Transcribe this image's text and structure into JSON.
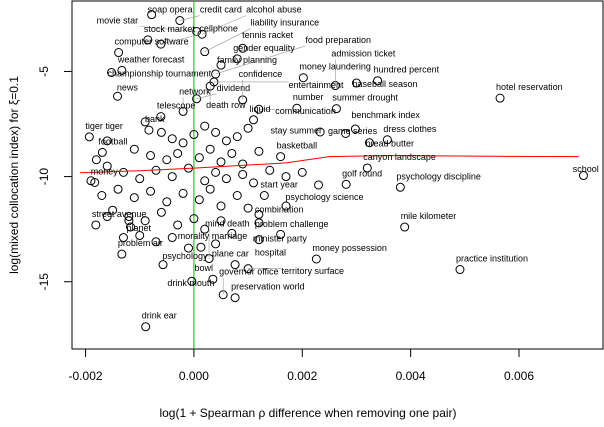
{
  "chart_data": {
    "type": "scatter",
    "title": "",
    "xlabel": "log(1 + Spearman ρ difference when removing one pair)",
    "ylabel": "log(mixed collocation index) for ξ=0.1",
    "xlim": [
      -0.00225,
      0.00755
    ],
    "ylim": [
      -18.2,
      -1.65
    ],
    "xticks": [
      -0.002,
      0.0,
      0.002,
      0.004,
      0.006
    ],
    "xtick_labels": [
      "-0.002",
      "0.000",
      "0.002",
      "0.004",
      "0.006"
    ],
    "yticks": [
      -5,
      -10,
      -15
    ],
    "ytick_labels": [
      "-5",
      "-10",
      "-15"
    ],
    "grid": false,
    "colors": {
      "points": "#000000",
      "smooth": "#ff0000",
      "zero_line": "#00c000"
    },
    "reference_line": {
      "x": 0
    },
    "smooth_line": [
      [
        -0.0021,
        -9.82
      ],
      [
        -0.001,
        -9.72
      ],
      [
        0,
        -9.6
      ],
      [
        0.0017,
        -9.35
      ],
      [
        0.0025,
        -9.05
      ],
      [
        0.0035,
        -9.0
      ],
      [
        0.0052,
        -9.03
      ],
      [
        0.0071,
        -9.05
      ]
    ],
    "labeled_points": [
      {
        "label": "soap opera",
        "x": -0.00078,
        "y": -2.3
      },
      {
        "label": "credit card",
        "x": -0.00026,
        "y": -2.58
      },
      {
        "label": "alcohol abuse",
        "x": 0.00015,
        "y": -3.23
      },
      {
        "label": "movie star",
        "x": 5e-05,
        "y": -3.1
      },
      {
        "label": "stock market",
        "x": -0.00085,
        "y": -3.5
      },
      {
        "label": "cellphone",
        "x": -0.00061,
        "y": -3.7
      },
      {
        "label": "computer software",
        "x": -0.00139,
        "y": -4.1
      },
      {
        "label": "liability insurance",
        "x": 0.0002,
        "y": -4.06
      },
      {
        "label": "tennis racket",
        "x": 0.0009,
        "y": -3.9
      },
      {
        "label": "gender equality",
        "x": 0.0008,
        "y": -4.4
      },
      {
        "label": "family planning",
        "x": 0.0005,
        "y": -4.7
      },
      {
        "label": "weather forecast",
        "x": -0.00133,
        "y": -4.95
      },
      {
        "label": "championship tournament",
        "x": -0.00152,
        "y": -5.05
      },
      {
        "label": "food preparation",
        "x": 0.0004,
        "y": -5.12
      },
      {
        "label": "entertainment",
        "x": 0.00037,
        "y": -5.5
      },
      {
        "label": "death row",
        "x": 0.0003,
        "y": -5.7
      },
      {
        "label": "money laundering",
        "x": 0.00202,
        "y": -5.3
      },
      {
        "label": "hundred percent",
        "x": 0.00339,
        "y": -5.44
      },
      {
        "label": "baseball season",
        "x": 0.003,
        "y": -5.55
      },
      {
        "label": "admission ticket",
        "x": 0.00261,
        "y": -5.67
      },
      {
        "label": "hotel reservation",
        "x": 0.00565,
        "y": -6.27
      },
      {
        "label": "news",
        "x": -0.00141,
        "y": -6.18
      },
      {
        "label": "dividend",
        "x": 5e-05,
        "y": -6.3
      },
      {
        "label": "confidence",
        "x": 0.0009,
        "y": -6.35
      },
      {
        "label": "network",
        "x": -0.0002,
        "y": -6.9
      },
      {
        "label": "communication",
        "x": 0.0012,
        "y": -6.8
      },
      {
        "label": "number",
        "x": 0.0019,
        "y": -6.75
      },
      {
        "label": "summer drought",
        "x": 0.00263,
        "y": -6.77
      },
      {
        "label": "telescope",
        "x": -0.00061,
        "y": -7.15
      },
      {
        "label": "liquid",
        "x": 0.0011,
        "y": -7.3
      },
      {
        "label": "bank",
        "x": -0.00083,
        "y": -7.79
      },
      {
        "label": "tiger tiger",
        "x": -0.00193,
        "y": -8.11
      },
      {
        "label": "benchmark index",
        "x": 0.00298,
        "y": -7.74
      },
      {
        "label": "game series",
        "x": 0.0028,
        "y": -7.95
      },
      {
        "label": "stay summer",
        "x": 0.00233,
        "y": -7.88
      },
      {
        "label": "dress clothes",
        "x": 0.00357,
        "y": -8.25
      },
      {
        "label": "bread butter",
        "x": 0.00324,
        "y": -8.39
      },
      {
        "label": "football",
        "x": -0.00169,
        "y": -8.85
      },
      {
        "label": "basketball",
        "x": 0.0016,
        "y": -9.05
      },
      {
        "label": "canyon landscape",
        "x": 0.0032,
        "y": -9.59
      },
      {
        "label": "money",
        "x": -0.00183,
        "y": -10.28
      },
      {
        "label": "school",
        "x": 0.00719,
        "y": -9.95
      },
      {
        "label": "golf round",
        "x": 0.00281,
        "y": -10.37
      },
      {
        "label": "psychology discipline",
        "x": 0.00381,
        "y": -10.51
      },
      {
        "label": "start year",
        "x": 0.0013,
        "y": -10.9
      },
      {
        "label": "psychology science",
        "x": 0.0017,
        "y": -11.4
      },
      {
        "label": "combination",
        "x": 0.0012,
        "y": -11.8
      },
      {
        "label": "problem challenge",
        "x": 0.0012,
        "y": -12.2
      },
      {
        "label": "street avenue",
        "x": -0.00181,
        "y": -12.3
      },
      {
        "label": "planet",
        "x": -0.00117,
        "y": -12.4
      },
      {
        "label": "mile kilometer",
        "x": 0.00389,
        "y": -12.4
      },
      {
        "label": "minister party",
        "x": 0.0016,
        "y": -12.75
      },
      {
        "label": "hospital",
        "x": 0.0012,
        "y": -13.0
      },
      {
        "label": "morality marriage",
        "x": 0.00013,
        "y": -13.36
      },
      {
        "label": "problem air",
        "x": -0.00133,
        "y": -13.69
      },
      {
        "label": "money possession",
        "x": 0.00226,
        "y": -13.92
      },
      {
        "label": "mind death",
        "x": 0.00028,
        "y": -13.9
      },
      {
        "label": "psychology",
        "x": -0.00057,
        "y": -14.19
      },
      {
        "label": "plane car",
        "x": 0.00076,
        "y": -14.19
      },
      {
        "label": "territory surface",
        "x": 0.001,
        "y": -14.38
      },
      {
        "label": "practice institution",
        "x": 0.00491,
        "y": -14.42
      },
      {
        "label": "bowl",
        "x": 0.00035,
        "y": -14.88
      },
      {
        "label": "drink mouth",
        "x": -4e-05,
        "y": -14.98
      },
      {
        "label": "governor office",
        "x": 0.00054,
        "y": -15.62
      },
      {
        "label": "preservation world",
        "x": 0.00076,
        "y": -15.76
      },
      {
        "label": "drink ear",
        "x": -0.00089,
        "y": -17.14
      }
    ],
    "unlabeled_points": [
      [
        -0.0009,
        -7.4
      ],
      [
        -0.0006,
        -7.9
      ],
      [
        -0.0004,
        -8.2
      ],
      [
        -0.0002,
        -8.4
      ],
      [
        0.0,
        -8.0
      ],
      [
        0.0002,
        -7.6
      ],
      [
        0.0004,
        -7.9
      ],
      [
        0.0006,
        -8.3
      ],
      [
        0.0008,
        -8.1
      ],
      [
        0.001,
        -7.7
      ],
      [
        -0.0011,
        -8.7
      ],
      [
        -0.0008,
        -9.0
      ],
      [
        -0.0005,
        -9.2
      ],
      [
        -0.0003,
        -8.9
      ],
      [
        0.0001,
        -9.1
      ],
      [
        0.0003,
        -8.7
      ],
      [
        0.0005,
        -9.3
      ],
      [
        0.0007,
        -8.9
      ],
      [
        0.0009,
        -9.4
      ],
      [
        0.0012,
        -8.8
      ],
      [
        -0.0016,
        -9.5
      ],
      [
        -0.0013,
        -9.8
      ],
      [
        -0.001,
        -10.1
      ],
      [
        -0.0007,
        -9.7
      ],
      [
        -0.0004,
        -10.0
      ],
      [
        -0.0001,
        -9.6
      ],
      [
        0.0002,
        -10.2
      ],
      [
        0.0004,
        -9.8
      ],
      [
        0.0006,
        -10.1
      ],
      [
        0.0009,
        -9.9
      ],
      [
        0.0011,
        -10.3
      ],
      [
        0.0014,
        -9.7
      ],
      [
        0.0017,
        -10.0
      ],
      [
        0.002,
        -9.8
      ],
      [
        0.0023,
        -10.4
      ],
      [
        -0.0014,
        -10.6
      ],
      [
        -0.0011,
        -11.0
      ],
      [
        -0.0008,
        -10.7
      ],
      [
        -0.0005,
        -11.2
      ],
      [
        -0.0002,
        -10.8
      ],
      [
        0.0001,
        -11.1
      ],
      [
        0.0003,
        -10.6
      ],
      [
        0.0005,
        -11.4
      ],
      [
        0.0008,
        -10.9
      ],
      [
        0.001,
        -11.5
      ],
      [
        -0.0015,
        -11.6
      ],
      [
        -0.0012,
        -11.9
      ],
      [
        -0.0009,
        -12.1
      ],
      [
        -0.0006,
        -11.7
      ],
      [
        -0.0003,
        -12.3
      ],
      [
        0.0,
        -12.0
      ],
      [
        0.0002,
        -12.5
      ],
      [
        0.0005,
        -12.1
      ],
      [
        0.0007,
        -12.7
      ],
      [
        -0.0013,
        -12.9
      ],
      [
        -0.001,
        -12.8
      ],
      [
        -0.0007,
        -13.1
      ],
      [
        -0.0004,
        -12.9
      ],
      [
        -0.0001,
        -13.4
      ],
      [
        0.0004,
        -13.2
      ],
      [
        -0.0019,
        -10.2
      ],
      [
        -0.0018,
        -9.2
      ],
      [
        -0.0017,
        -10.9
      ],
      [
        -0.0016,
        -8.3
      ],
      [
        -0.0016,
        -11.9
      ],
      [
        -0.0012,
        -12.1
      ]
    ]
  }
}
